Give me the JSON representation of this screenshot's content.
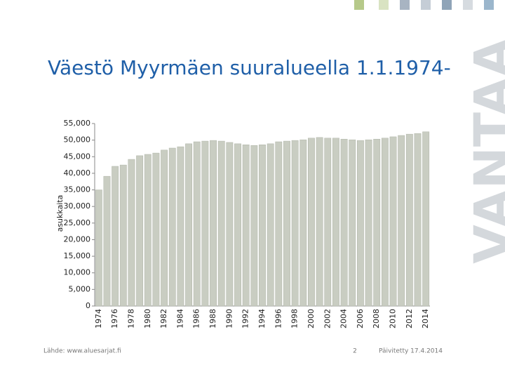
{
  "chart_data": {
    "type": "bar",
    "title": "Väestö Myyrmäen suuralueella 1.1.1974-",
    "y_label": "asukkaita",
    "categories": [
      "1974",
      null,
      "1976",
      null,
      "1978",
      null,
      "1980",
      null,
      "1982",
      null,
      "1984",
      null,
      "1986",
      null,
      "1988",
      null,
      "1990",
      null,
      "1992",
      null,
      "1994",
      null,
      "1996",
      null,
      "1998",
      null,
      "2000",
      null,
      "2002",
      null,
      "2004",
      null,
      "2006",
      null,
      "2008",
      null,
      "2010",
      null,
      "2012",
      null,
      "2014"
    ],
    "values": [
      35000,
      39100,
      42100,
      42500,
      44200,
      45300,
      45700,
      46100,
      47000,
      47600,
      48000,
      48900,
      49500,
      49700,
      49900,
      49700,
      49300,
      48900,
      48600,
      48400,
      48600,
      48900,
      49500,
      49700,
      49900,
      50100,
      50600,
      50800,
      50600,
      50600,
      50300,
      50100,
      49900,
      50100,
      50300,
      50600,
      51000,
      51400,
      51800,
      52000,
      52500
    ],
    "color": "#c9cdc2",
    "ylim": [
      0,
      55000
    ],
    "yticks": [
      0,
      {
        "value": 5000,
        "label": "5,000"
      },
      {
        "value": 10000,
        "label": "10,000"
      },
      {
        "value": 15000,
        "label": "15,000"
      },
      {
        "value": 20000,
        "label": "20,000"
      },
      {
        "value": 25000,
        "label": "25,000"
      },
      {
        "value": 30000,
        "label": "30,000"
      },
      {
        "value": 35000,
        "label": "35,000"
      },
      {
        "value": 40000,
        "label": "40,000"
      },
      {
        "value": 45000,
        "label": "45,000"
      },
      {
        "value": 50000,
        "label": "50,000"
      },
      {
        "value": 55000,
        "label": "55,000"
      }
    ],
    "grid": false
  },
  "footer": {
    "source": "Lähde: www.aluesarjat.fi",
    "page": "2",
    "updated": "Päivitetty 17.4.2014"
  },
  "logo": "VANTAA"
}
